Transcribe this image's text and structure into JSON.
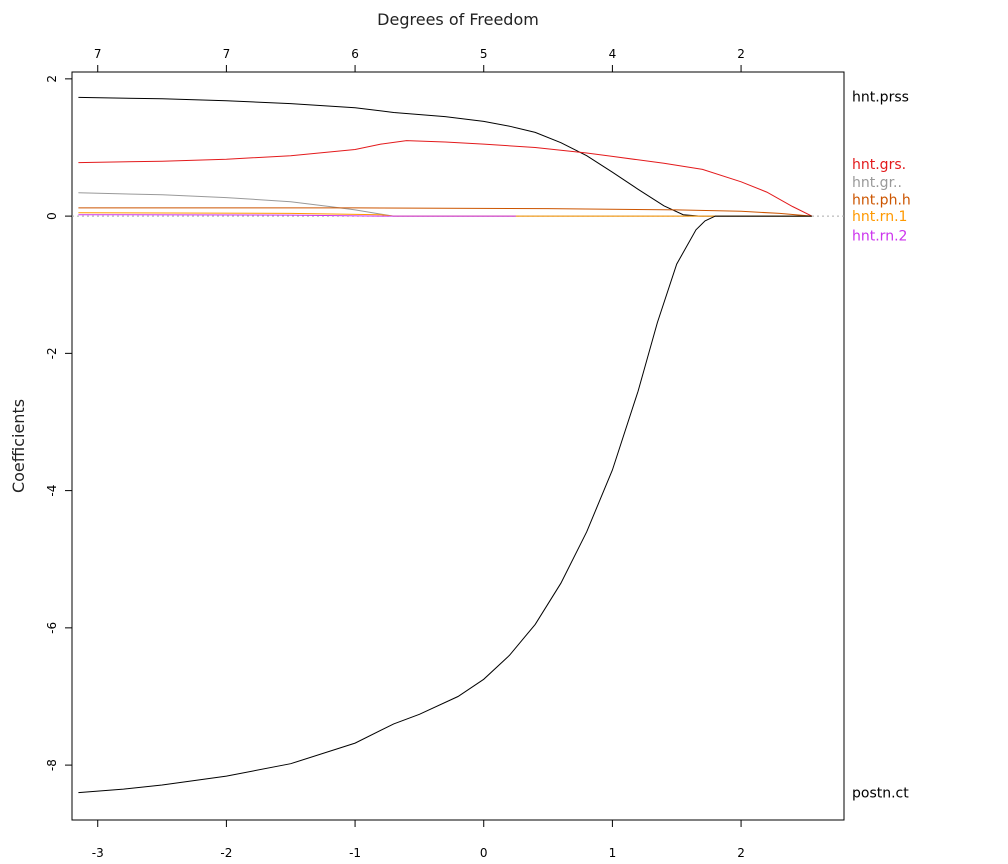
{
  "chart_data": {
    "type": "line",
    "title": "",
    "xlabel": "",
    "ylabel": "Coefficients",
    "top_axis_label": "Degrees of Freedom",
    "xlim": [
      -3.2,
      2.8
    ],
    "ylim": [
      -8.8,
      2.1
    ],
    "x_ticks": [
      -3,
      -2,
      -1,
      0,
      1,
      2
    ],
    "x_tick_labels": [
      "-3",
      "-2",
      "-1",
      "0",
      "1",
      "2"
    ],
    "y_ticks": [
      2,
      0,
      -2,
      -4,
      -6,
      -8
    ],
    "y_tick_labels": [
      "2",
      "0",
      "-2",
      "-4",
      "-6",
      "-8"
    ],
    "top_ticks": [
      -3,
      -2,
      -1,
      0,
      1,
      2
    ],
    "top_tick_labels": [
      "7",
      "7",
      "6",
      "5",
      "4",
      "2"
    ],
    "zero_line": true,
    "grid": false,
    "legend": "right-side end labels",
    "series": [
      {
        "name": "hnt.prss",
        "color": "#000000",
        "label_y": 1.74,
        "points": [
          [
            -3.15,
            1.73
          ],
          [
            -2.5,
            1.71
          ],
          [
            -2.0,
            1.68
          ],
          [
            -1.5,
            1.64
          ],
          [
            -1.0,
            1.58
          ],
          [
            -0.7,
            1.51
          ],
          [
            -0.3,
            1.45
          ],
          [
            0.0,
            1.38
          ],
          [
            0.2,
            1.31
          ],
          [
            0.4,
            1.22
          ],
          [
            0.6,
            1.07
          ],
          [
            0.8,
            0.88
          ],
          [
            1.0,
            0.64
          ],
          [
            1.2,
            0.39
          ],
          [
            1.4,
            0.15
          ],
          [
            1.55,
            0.02
          ],
          [
            1.68,
            0.0
          ],
          [
            2.55,
            0.0
          ]
        ]
      },
      {
        "name": "hnt.grs.",
        "color": "#e31a1c",
        "label_y": 0.76,
        "points": [
          [
            -3.15,
            0.78
          ],
          [
            -2.5,
            0.8
          ],
          [
            -2.0,
            0.83
          ],
          [
            -1.5,
            0.88
          ],
          [
            -1.0,
            0.97
          ],
          [
            -0.8,
            1.05
          ],
          [
            -0.6,
            1.1
          ],
          [
            -0.3,
            1.08
          ],
          [
            0.0,
            1.05
          ],
          [
            0.4,
            1.0
          ],
          [
            0.8,
            0.92
          ],
          [
            1.0,
            0.87
          ],
          [
            1.4,
            0.77
          ],
          [
            1.7,
            0.68
          ],
          [
            2.0,
            0.5
          ],
          [
            2.2,
            0.35
          ],
          [
            2.4,
            0.14
          ],
          [
            2.55,
            0.0
          ]
        ]
      },
      {
        "name": "hnt.gr..",
        "color": "#999999",
        "label_y": 0.5,
        "points": [
          [
            -3.15,
            0.34
          ],
          [
            -2.5,
            0.31
          ],
          [
            -2.0,
            0.27
          ],
          [
            -1.5,
            0.21
          ],
          [
            -1.2,
            0.14
          ],
          [
            -1.0,
            0.09
          ],
          [
            -0.8,
            0.03
          ],
          [
            -0.7,
            0.0
          ],
          [
            2.55,
            0.0
          ]
        ]
      },
      {
        "name": "hnt.ph.h",
        "color": "#cc5500",
        "label_y": 0.24,
        "points": [
          [
            -3.15,
            0.12
          ],
          [
            -1.0,
            0.12
          ],
          [
            0.5,
            0.11
          ],
          [
            1.5,
            0.09
          ],
          [
            2.0,
            0.07
          ],
          [
            2.3,
            0.04
          ],
          [
            2.55,
            0.0
          ]
        ]
      },
      {
        "name": "hnt.rn.1",
        "color": "#ff9900",
        "label_y": 0.0,
        "points": [
          [
            -3.15,
            0.05
          ],
          [
            -1.5,
            0.04
          ],
          [
            -0.8,
            0.02
          ],
          [
            -0.7,
            0.0
          ],
          [
            2.55,
            0.0
          ]
        ]
      },
      {
        "name": "hnt.rn.2",
        "color": "#cc33ee",
        "label_y": -0.28,
        "points": [
          [
            -3.15,
            0.02
          ],
          [
            -1.5,
            0.015
          ],
          [
            -0.8,
            0.0
          ],
          [
            0.25,
            0.0
          ]
        ]
      },
      {
        "name": "postn.ct",
        "color": "#000000",
        "label_y": -8.4,
        "points": [
          [
            -3.15,
            -8.4
          ],
          [
            -2.8,
            -8.35
          ],
          [
            -2.5,
            -8.29
          ],
          [
            -2.0,
            -8.16
          ],
          [
            -1.5,
            -7.98
          ],
          [
            -1.0,
            -7.68
          ],
          [
            -0.7,
            -7.4
          ],
          [
            -0.5,
            -7.26
          ],
          [
            -0.2,
            -7.0
          ],
          [
            0.0,
            -6.75
          ],
          [
            0.2,
            -6.4
          ],
          [
            0.4,
            -5.95
          ],
          [
            0.6,
            -5.35
          ],
          [
            0.8,
            -4.6
          ],
          [
            1.0,
            -3.7
          ],
          [
            1.2,
            -2.55
          ],
          [
            1.35,
            -1.55
          ],
          [
            1.5,
            -0.7
          ],
          [
            1.65,
            -0.2
          ],
          [
            1.72,
            -0.07
          ],
          [
            1.8,
            0.0
          ],
          [
            2.55,
            0.0
          ]
        ]
      }
    ]
  }
}
